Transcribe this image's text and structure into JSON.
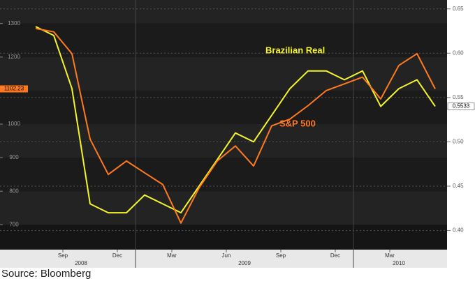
{
  "chart_data": {
    "type": "line",
    "x": [
      "2008-07",
      "2008-08",
      "2008-09",
      "2008-10",
      "2008-11",
      "2008-12",
      "2009-01",
      "2009-02",
      "2009-03",
      "2009-04",
      "2009-05",
      "2009-06",
      "2009-07",
      "2009-08",
      "2009-09",
      "2009-10",
      "2009-11",
      "2009-12",
      "2010-01",
      "2010-02",
      "2010-03",
      "2010-04",
      "2010-05"
    ],
    "xlim": [
      "2008-07",
      "2010-06"
    ],
    "xticks": [
      {
        "value": "2008-09",
        "label": "Sep"
      },
      {
        "value": "2008-12",
        "label": "Dec"
      },
      {
        "value": "2009-03",
        "label": "Mar"
      },
      {
        "value": "2009-06",
        "label": "Jun"
      },
      {
        "value": "2009-09",
        "label": "Sep"
      },
      {
        "value": "2009-12",
        "label": "Dec"
      },
      {
        "value": "2010-03",
        "label": "Mar"
      }
    ],
    "year_labels": [
      "2008",
      "2009",
      "2010"
    ],
    "series": [
      {
        "name": "S&P 500",
        "color": "#ff7a1f",
        "axis": "y",
        "values": [
          1285,
          1275,
          1210,
          955,
          850,
          890,
          855,
          820,
          705,
          810,
          890,
          935,
          875,
          995,
          1015,
          1055,
          1100,
          1120,
          1140,
          1075,
          1175,
          1210,
          1105
        ]
      },
      {
        "name": "Brazilian Real",
        "color": "#f4f42a",
        "axis": "y2",
        "values": [
          0.63,
          0.62,
          0.56,
          0.43,
          0.42,
          0.42,
          0.44,
          0.43,
          0.42,
          0.45,
          0.48,
          0.51,
          0.5,
          0.53,
          0.56,
          0.58,
          0.58,
          0.57,
          0.58,
          0.54,
          0.56,
          0.57,
          0.54
        ]
      }
    ],
    "ylim": [
      630,
      1370
    ],
    "yticks": [
      700,
      800,
      900,
      1000,
      1100,
      1200,
      1300
    ],
    "y2lim": [
      0.38,
      0.66
    ],
    "y2ticks": [
      {
        "value": 0.4,
        "label": "0.40"
      },
      0.45,
      {
        "value": 0.5,
        "label": "0.50"
      },
      0.55,
      {
        "value": 0.6,
        "label": "0.60"
      },
      0.65
    ],
    "y_current_label": "1102.23",
    "y2_current_label": "0.5533",
    "grid": true,
    "source": "Source: Bloomberg"
  }
}
